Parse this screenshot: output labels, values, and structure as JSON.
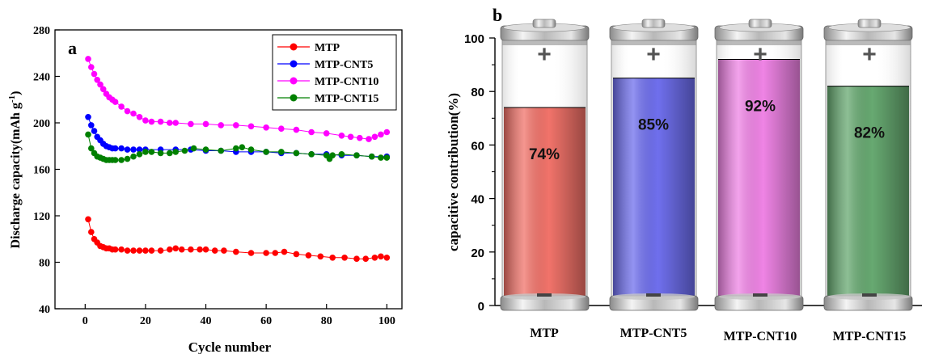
{
  "chart_data": [
    {
      "type": "scatter",
      "panel_label": "a",
      "xlabel": "Cycle number",
      "ylabel": "Discharge capacity(mAh g",
      "ylabel_sup": "-1",
      "ylabel_tail": ")",
      "xlim": [
        -10,
        105
      ],
      "ylim": [
        40,
        280
      ],
      "xticks": [
        0,
        20,
        40,
        60,
        80,
        100
      ],
      "yticks": [
        40,
        80,
        120,
        160,
        200,
        240,
        280
      ],
      "legend_position": "top-right",
      "series": [
        {
          "name": "MTP",
          "color": "#ff0000",
          "points": [
            [
              1,
              117
            ],
            [
              2,
              106
            ],
            [
              3,
              100
            ],
            [
              4,
              97
            ],
            [
              5,
              94
            ],
            [
              6,
              93
            ],
            [
              7,
              92
            ],
            [
              8,
              92
            ],
            [
              9,
              91
            ],
            [
              10,
              91
            ],
            [
              12,
              91
            ],
            [
              14,
              90
            ],
            [
              16,
              90
            ],
            [
              18,
              90
            ],
            [
              20,
              90
            ],
            [
              22,
              90
            ],
            [
              25,
              90
            ],
            [
              28,
              91
            ],
            [
              30,
              92
            ],
            [
              32,
              91
            ],
            [
              35,
              91
            ],
            [
              38,
              91
            ],
            [
              40,
              91
            ],
            [
              43,
              90
            ],
            [
              46,
              90
            ],
            [
              50,
              89
            ],
            [
              55,
              88
            ],
            [
              60,
              88
            ],
            [
              63,
              88
            ],
            [
              66,
              89
            ],
            [
              70,
              87
            ],
            [
              74,
              86
            ],
            [
              78,
              85
            ],
            [
              82,
              84
            ],
            [
              86,
              84
            ],
            [
              90,
              83
            ],
            [
              93,
              83
            ],
            [
              96,
              84
            ],
            [
              98,
              85
            ],
            [
              100,
              84
            ]
          ]
        },
        {
          "name": "MTP-CNT5",
          "color": "#0000ff",
          "points": [
            [
              1,
              205
            ],
            [
              2,
              198
            ],
            [
              3,
              193
            ],
            [
              4,
              188
            ],
            [
              5,
              185
            ],
            [
              6,
              182
            ],
            [
              7,
              180
            ],
            [
              8,
              179
            ],
            [
              9,
              178
            ],
            [
              10,
              178
            ],
            [
              12,
              178
            ],
            [
              14,
              177
            ],
            [
              16,
              177
            ],
            [
              18,
              177
            ],
            [
              20,
              177
            ],
            [
              25,
              177
            ],
            [
              30,
              177
            ],
            [
              35,
              177
            ],
            [
              40,
              176
            ],
            [
              45,
              176
            ],
            [
              50,
              175
            ],
            [
              55,
              175
            ],
            [
              60,
              175
            ],
            [
              65,
              174
            ],
            [
              70,
              174
            ],
            [
              75,
              173
            ],
            [
              80,
              173
            ],
            [
              85,
              172
            ],
            [
              90,
              172
            ],
            [
              95,
              171
            ],
            [
              100,
              171
            ]
          ]
        },
        {
          "name": "MTP-CNT10",
          "color": "#ff00ff",
          "points": [
            [
              1,
              255
            ],
            [
              2,
              248
            ],
            [
              3,
              242
            ],
            [
              4,
              237
            ],
            [
              5,
              233
            ],
            [
              6,
              229
            ],
            [
              7,
              225
            ],
            [
              8,
              222
            ],
            [
              9,
              220
            ],
            [
              10,
              218
            ],
            [
              12,
              214
            ],
            [
              14,
              210
            ],
            [
              16,
              208
            ],
            [
              18,
              205
            ],
            [
              20,
              202
            ],
            [
              22,
              201
            ],
            [
              25,
              201
            ],
            [
              28,
              200
            ],
            [
              30,
              200
            ],
            [
              35,
              199
            ],
            [
              40,
              199
            ],
            [
              45,
              198
            ],
            [
              50,
              198
            ],
            [
              55,
              197
            ],
            [
              60,
              196
            ],
            [
              65,
              195
            ],
            [
              70,
              194
            ],
            [
              75,
              192
            ],
            [
              80,
              191
            ],
            [
              85,
              189
            ],
            [
              88,
              188
            ],
            [
              91,
              187
            ],
            [
              94,
              186
            ],
            [
              96,
              188
            ],
            [
              98,
              190
            ],
            [
              100,
              192
            ]
          ]
        },
        {
          "name": "MTP-CNT15",
          "color": "#008000",
          "points": [
            [
              1,
              190
            ],
            [
              2,
              178
            ],
            [
              3,
              174
            ],
            [
              4,
              171
            ],
            [
              5,
              170
            ],
            [
              6,
              169
            ],
            [
              7,
              168
            ],
            [
              8,
              168
            ],
            [
              9,
              168
            ],
            [
              10,
              168
            ],
            [
              12,
              168
            ],
            [
              14,
              169
            ],
            [
              16,
              171
            ],
            [
              18,
              173
            ],
            [
              20,
              175
            ],
            [
              22,
              175
            ],
            [
              25,
              174
            ],
            [
              28,
              174
            ],
            [
              30,
              175
            ],
            [
              33,
              176
            ],
            [
              36,
              178
            ],
            [
              40,
              177
            ],
            [
              45,
              176
            ],
            [
              50,
              178
            ],
            [
              52,
              179
            ],
            [
              55,
              177
            ],
            [
              60,
              175
            ],
            [
              65,
              175
            ],
            [
              70,
              174
            ],
            [
              75,
              173
            ],
            [
              80,
              172
            ],
            [
              81,
              169
            ],
            [
              82,
              172
            ],
            [
              85,
              173
            ],
            [
              90,
              172
            ],
            [
              95,
              171
            ],
            [
              98,
              170
            ],
            [
              100,
              170
            ]
          ]
        }
      ]
    },
    {
      "type": "bar",
      "panel_label": "b",
      "ylabel": "capacitive contribution(%)",
      "ylim": [
        0,
        100
      ],
      "yticks": [
        0,
        20,
        40,
        60,
        80,
        100
      ],
      "categories": [
        "MTP",
        "MTP-CNT5",
        "MTP-CNT10",
        "MTP-CNT15"
      ],
      "values": [
        74,
        85,
        92,
        82
      ],
      "value_labels": [
        "74%",
        "85%",
        "92%",
        "82%"
      ],
      "colors": [
        "#ee5a50",
        "#5656ea",
        "#ec6ee0",
        "#4c9a58"
      ],
      "battery_plus": "+",
      "battery_minus": "−"
    }
  ]
}
